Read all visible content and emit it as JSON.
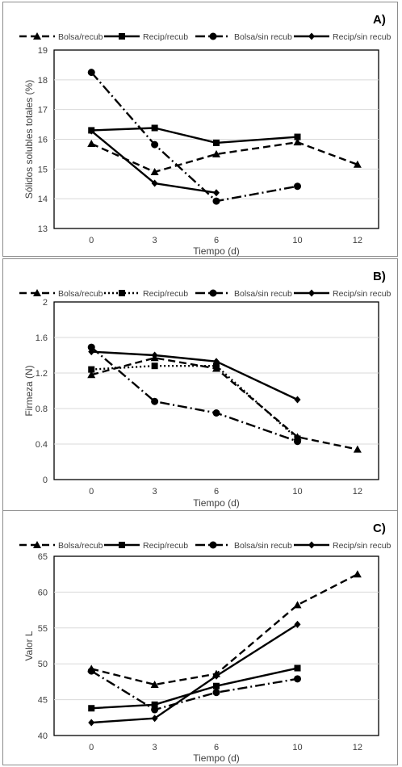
{
  "chart_data": [
    {
      "type": "line",
      "panel_label": "A)",
      "title": "",
      "xlabel": "Tiempo (d)",
      "ylabel": "Sólidos solubles totales (%)",
      "ylim": [
        13,
        19
      ],
      "yticks": [
        "13",
        "14",
        "15",
        "16",
        "17",
        "18",
        "19"
      ],
      "categories": [
        "0",
        "3",
        "6",
        "10",
        "12"
      ],
      "grid": true,
      "legend_position": "top",
      "series": [
        {
          "name": "Bolsa/recub",
          "marker": "triangle",
          "dash": "dash",
          "values": [
            15.85,
            14.9,
            15.5,
            15.9,
            15.15
          ]
        },
        {
          "name": "Recip/recub",
          "marker": "square",
          "dash": "solid",
          "values": [
            16.3,
            16.38,
            15.88,
            16.08,
            null
          ]
        },
        {
          "name": "Bolsa/sin recub",
          "marker": "circle",
          "dash": "dashdot",
          "values": [
            18.25,
            15.82,
            13.92,
            14.42,
            null
          ]
        },
        {
          "name": "Recip/sin recub",
          "marker": "diamond",
          "dash": "solid",
          "values": [
            16.28,
            14.52,
            14.2,
            null,
            null
          ]
        }
      ]
    },
    {
      "type": "line",
      "panel_label": "B)",
      "title": "",
      "xlabel": "Tiempo (d)",
      "ylabel": "Firmeza (N)",
      "ylim": [
        0,
        2
      ],
      "yticks": [
        "0",
        "0.4",
        "0.8",
        "1.2",
        "1.6",
        "2"
      ],
      "categories": [
        "0",
        "3",
        "6",
        "10",
        "12"
      ],
      "grid": true,
      "legend_position": "top",
      "series": [
        {
          "name": "Bolsa/recub",
          "marker": "triangle",
          "dash": "dash",
          "values": [
            1.18,
            1.37,
            1.25,
            0.48,
            0.34
          ]
        },
        {
          "name": "Recip/recub",
          "marker": "square",
          "dash": "dot",
          "values": [
            1.24,
            1.28,
            1.28,
            0.46,
            null
          ]
        },
        {
          "name": "Bolsa/sin recub",
          "marker": "circle",
          "dash": "dashdot",
          "values": [
            1.49,
            0.88,
            0.75,
            0.43,
            null
          ]
        },
        {
          "name": "Recip/sin recub",
          "marker": "diamond",
          "dash": "solid",
          "values": [
            1.44,
            1.4,
            1.33,
            0.9,
            null
          ]
        }
      ]
    },
    {
      "type": "line",
      "panel_label": "C)",
      "title": "",
      "xlabel": "Tiempo (d)",
      "ylabel": "Valor L",
      "ylim": [
        40,
        65
      ],
      "yticks": [
        "40",
        "45",
        "50",
        "55",
        "60",
        "65"
      ],
      "categories": [
        "0",
        "3",
        "6",
        "10",
        "12"
      ],
      "grid": true,
      "legend_position": "top",
      "series": [
        {
          "name": "Bolsa/recub",
          "marker": "triangle",
          "dash": "dash",
          "values": [
            49.3,
            47.1,
            48.6,
            58.2,
            62.5
          ]
        },
        {
          "name": "Recip/recub",
          "marker": "square",
          "dash": "solid",
          "values": [
            43.8,
            44.3,
            46.9,
            49.4,
            null
          ]
        },
        {
          "name": "Bolsa/sin recub",
          "marker": "circle",
          "dash": "dashdot",
          "values": [
            49.0,
            43.6,
            46.0,
            47.9,
            null
          ]
        },
        {
          "name": "Recip/sin recub",
          "marker": "diamond",
          "dash": "solid",
          "values": [
            41.8,
            42.4,
            48.3,
            55.5,
            null
          ]
        }
      ]
    }
  ]
}
